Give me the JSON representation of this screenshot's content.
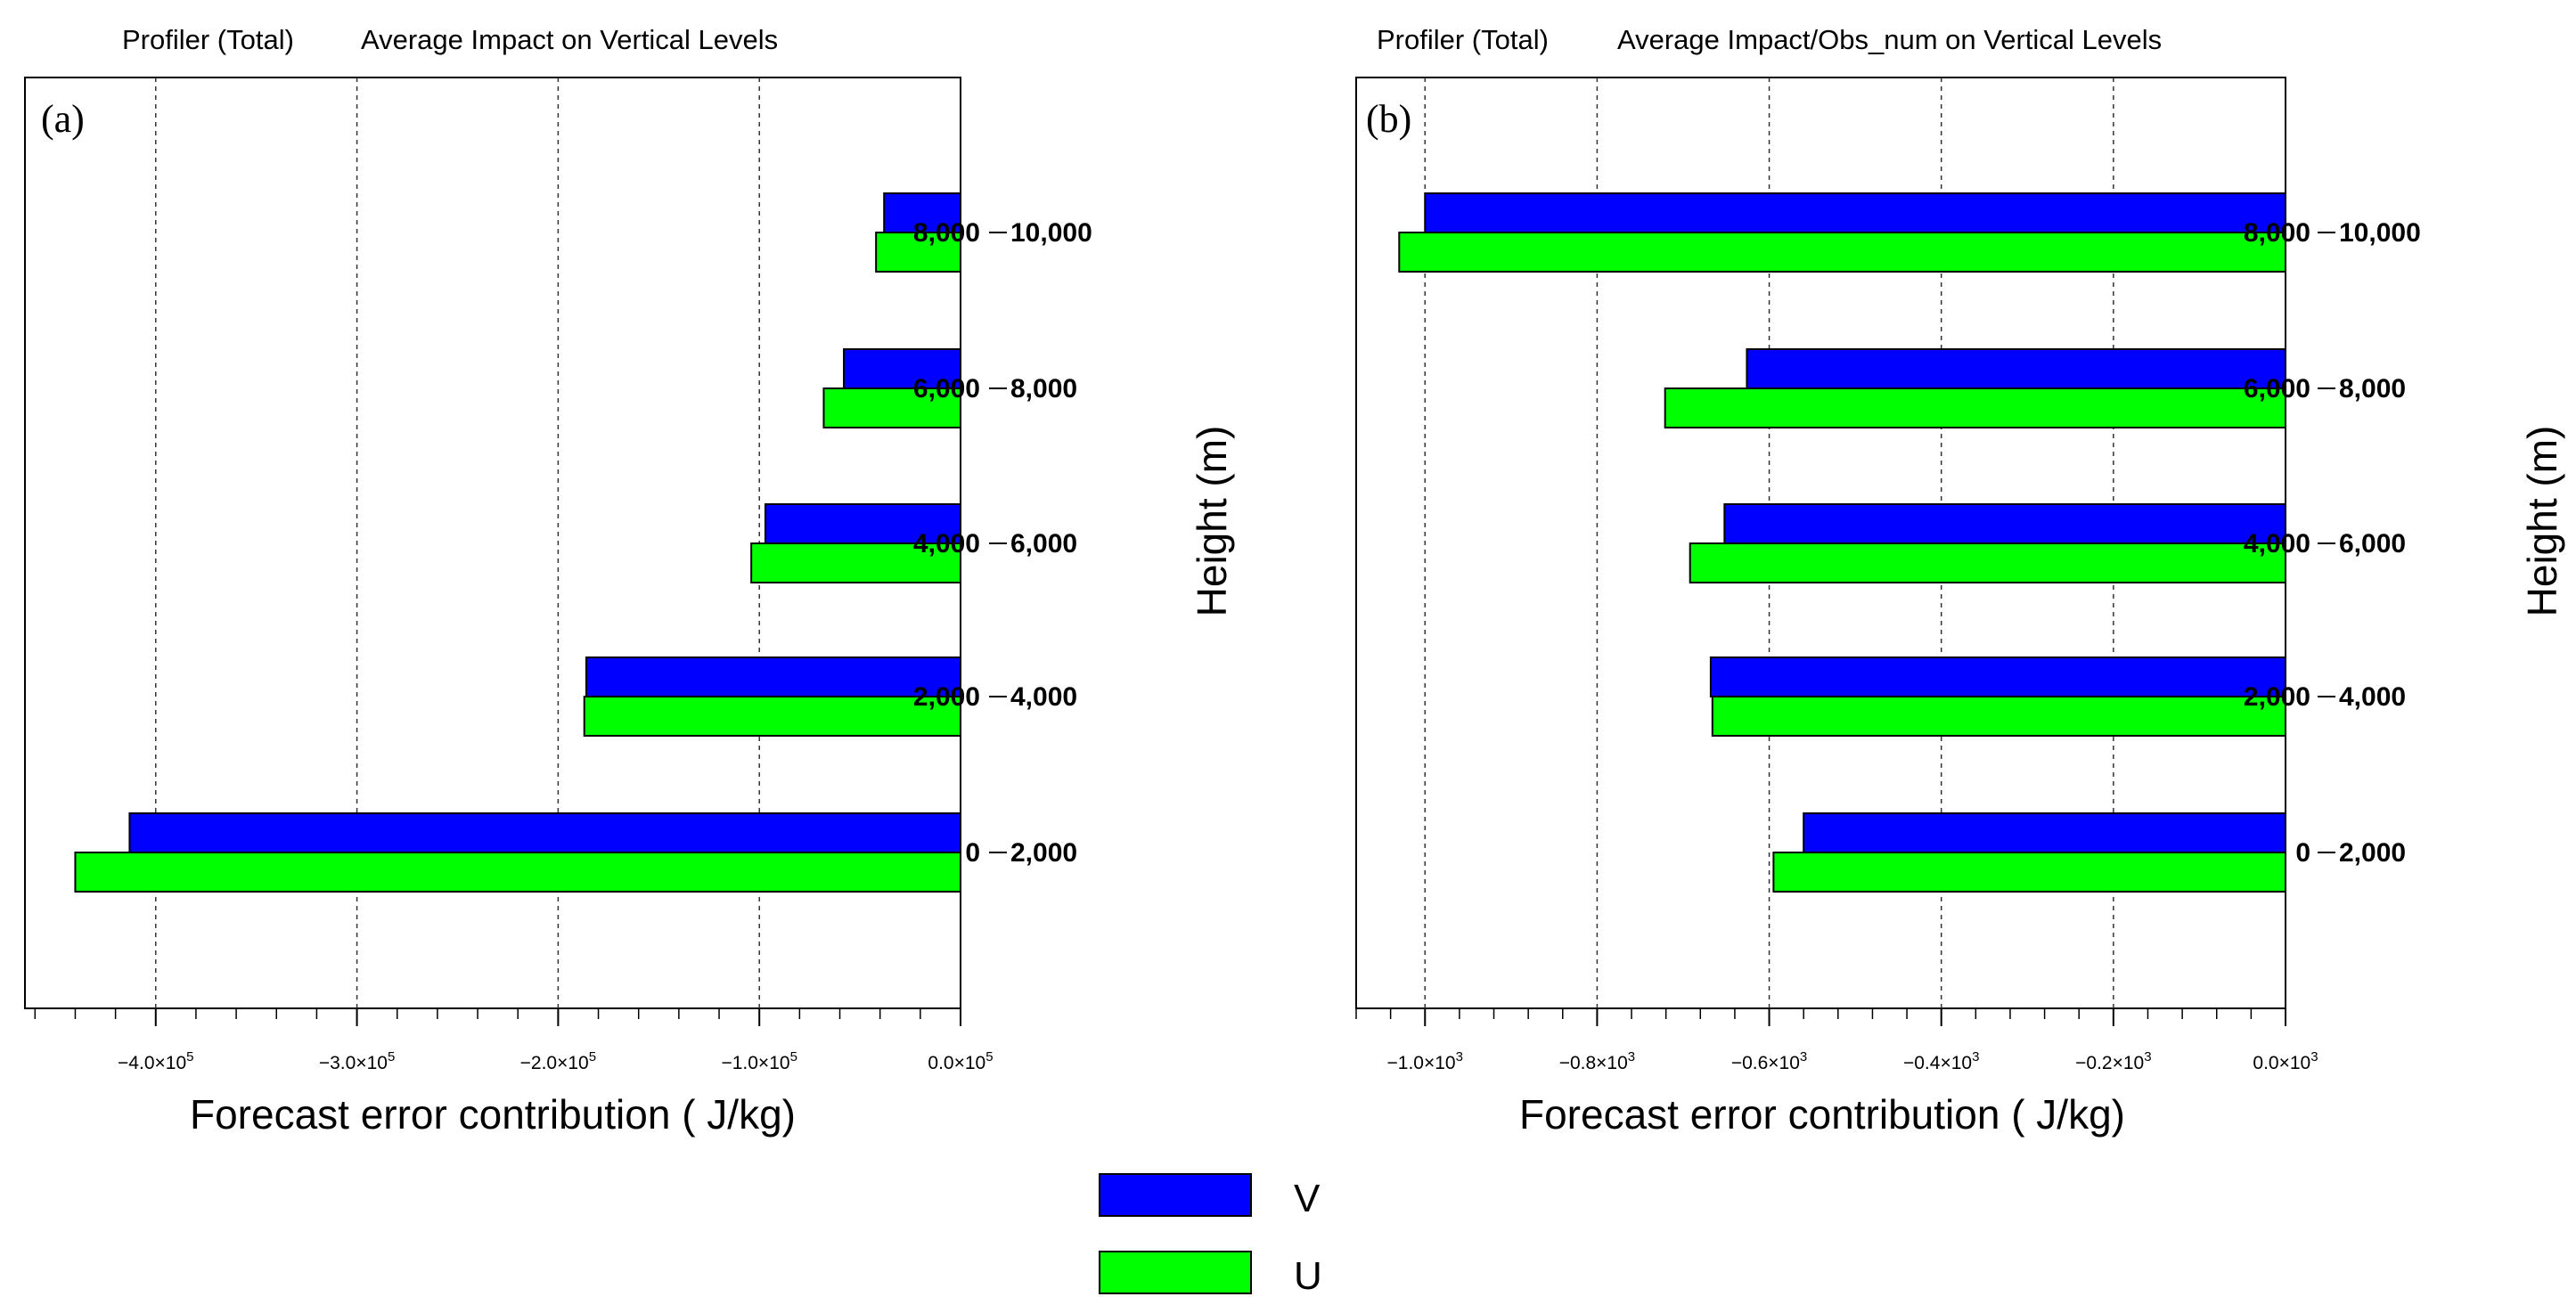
{
  "chart_data": [
    {
      "type": "bar",
      "orientation": "horizontal",
      "panel_label": "(a)",
      "title_left": "Profiler  (Total)",
      "title_right": "Average Impact on Vertical Levels",
      "xlabel": "Forecast error contribution ( J/kg)",
      "ylabel": "Height (m)",
      "xlim": [
        -465000,
        0
      ],
      "categories": [
        {
          "low": "0",
          "high": "2,000"
        },
        {
          "low": "2,000",
          "high": "4,000"
        },
        {
          "low": "4,000",
          "high": "6,000"
        },
        {
          "low": "6,000",
          "high": "8,000"
        },
        {
          "low": "8,000",
          "high": "10,000"
        }
      ],
      "series": [
        {
          "name": "V",
          "color": "#0000ff",
          "values": [
            -413000,
            -186000,
            -97000,
            -58000,
            -38000
          ]
        },
        {
          "name": "U",
          "color": "#00ff00",
          "values": [
            -440000,
            -187000,
            -104000,
            -68000,
            -42000
          ]
        }
      ],
      "ticks": [
        {
          "value": -400000,
          "mant": "−4.0×10",
          "exp": "5"
        },
        {
          "value": -300000,
          "mant": "−3.0×10",
          "exp": "5"
        },
        {
          "value": -200000,
          "mant": "−2.0×10",
          "exp": "5"
        },
        {
          "value": -100000,
          "mant": "−1.0×10",
          "exp": "5"
        },
        {
          "value": 0,
          "mant": "0.0×10",
          "exp": "5"
        }
      ],
      "minor_step": 20000,
      "gridlines": [
        -400000,
        -300000,
        -200000,
        -100000
      ]
    },
    {
      "type": "bar",
      "orientation": "horizontal",
      "panel_label": "(b)",
      "title_left": "Profiler  (Total)",
      "title_right": "Average Impact/Obs_num on Vertical Levels",
      "xlabel": "Forecast error contribution ( J/kg)",
      "ylabel": "Height (m)",
      "xlim": [
        -1080,
        0
      ],
      "categories": [
        {
          "low": "0",
          "high": "2,000"
        },
        {
          "low": "2,000",
          "high": "4,000"
        },
        {
          "low": "4,000",
          "high": "6,000"
        },
        {
          "low": "6,000",
          "high": "8,000"
        },
        {
          "low": "8,000",
          "high": "10,000"
        }
      ],
      "series": [
        {
          "name": "V",
          "color": "#0000ff",
          "values": [
            -560,
            -668,
            -652,
            -626,
            -1000
          ]
        },
        {
          "name": "U",
          "color": "#00ff00",
          "values": [
            -595,
            -666,
            -692,
            -721,
            -1030
          ]
        }
      ],
      "ticks": [
        {
          "value": -1000,
          "mant": "−1.0×10",
          "exp": "3"
        },
        {
          "value": -800,
          "mant": "−0.8×10",
          "exp": "3"
        },
        {
          "value": -600,
          "mant": "−0.6×10",
          "exp": "3"
        },
        {
          "value": -400,
          "mant": "−0.4×10",
          "exp": "3"
        },
        {
          "value": -200,
          "mant": "−0.2×10",
          "exp": "3"
        },
        {
          "value": 0,
          "mant": "0.0×10",
          "exp": "3"
        }
      ],
      "minor_step": 40,
      "gridlines": [
        -1000,
        -800,
        -600,
        -400,
        -200
      ]
    }
  ],
  "legend": [
    {
      "name": "V",
      "color": "#0000ff"
    },
    {
      "name": "U",
      "color": "#00ff00"
    }
  ]
}
